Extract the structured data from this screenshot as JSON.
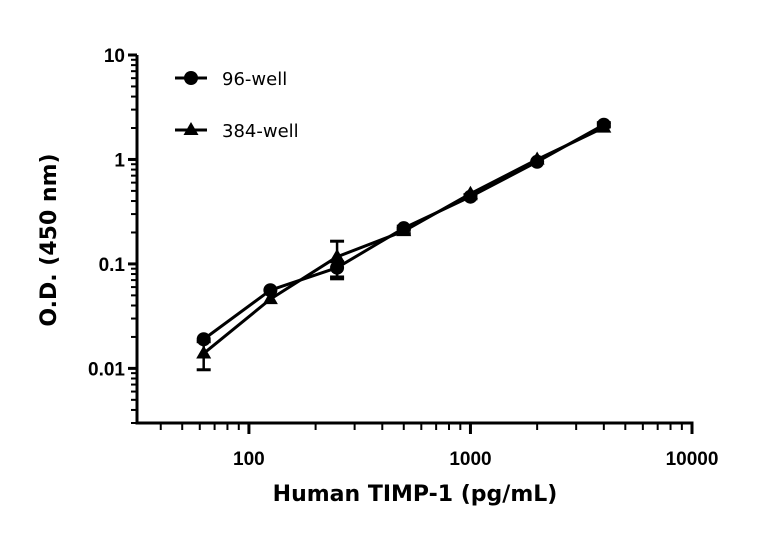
{
  "chart_data": {
    "type": "line",
    "title": "",
    "xlabel": "Human TIMP-1 (pg/mL)",
    "ylabel": "O.D. (450 nm)",
    "xscale": "log",
    "yscale": "log",
    "xlim": [
      31.25,
      10000
    ],
    "ylim": [
      0.003,
      10
    ],
    "xticks": [
      {
        "value": 100,
        "label": "100"
      },
      {
        "value": 1000,
        "label": "1000"
      },
      {
        "value": 10000,
        "label": "10000"
      }
    ],
    "yticks": [
      {
        "value": 0.01,
        "label": "0.01"
      },
      {
        "value": 0.1,
        "label": "0.1"
      },
      {
        "value": 1,
        "label": "1"
      },
      {
        "value": 10,
        "label": "10"
      }
    ],
    "grid": false,
    "legend_position": "top-left",
    "x": [
      62.5,
      125,
      250,
      500,
      1000,
      2000,
      4000
    ],
    "series": [
      {
        "name": "96-well",
        "marker": "circle",
        "color": "#000000",
        "values": [
          0.019,
          0.056,
          0.092,
          0.22,
          0.44,
          0.95,
          2.15
        ],
        "error_low": [
          0.019,
          0.056,
          0.072,
          0.21,
          0.42,
          0.92,
          2.05
        ],
        "error_high": [
          0.019,
          0.056,
          0.105,
          0.23,
          0.46,
          0.98,
          2.25
        ]
      },
      {
        "name": "384-well",
        "marker": "triangle",
        "color": "#000000",
        "values": [
          0.0139,
          0.046,
          0.117,
          0.206,
          0.47,
          1.0,
          2.02
        ],
        "error_low": [
          0.0097,
          0.044,
          0.075,
          0.195,
          0.45,
          0.97,
          1.95
        ],
        "error_high": [
          0.018,
          0.048,
          0.165,
          0.218,
          0.49,
          1.03,
          2.1
        ]
      }
    ]
  }
}
